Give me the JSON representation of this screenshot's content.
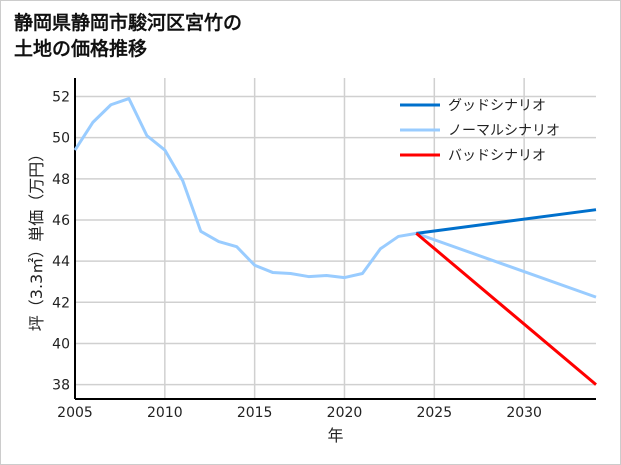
{
  "chart_data": {
    "type": "line",
    "title_lines": [
      "静岡県静岡市駿河区宮竹の",
      "土地の価格推移"
    ],
    "xlabel": "年",
    "ylabel": "坪（3.3㎡）単価（万円）",
    "xlim": [
      2005,
      2034
    ],
    "ylim": [
      37.3,
      52.9
    ],
    "xticks": [
      2005,
      2010,
      2015,
      2020,
      2025,
      2030
    ],
    "yticks": [
      38,
      40,
      42,
      44,
      46,
      48,
      50,
      52
    ],
    "grid": true,
    "legend_position": "top-right",
    "series": [
      {
        "name": "グッドシナリオ",
        "color": "#0070cc",
        "x": [
          2024,
          2034
        ],
        "y": [
          45.35,
          46.5
        ]
      },
      {
        "name": "ノーマルシナリオ",
        "color": "#99ccff",
        "x": [
          2005,
          2006,
          2007,
          2008,
          2009,
          2010,
          2011,
          2012,
          2013,
          2014,
          2015,
          2016,
          2017,
          2018,
          2019,
          2020,
          2021,
          2022,
          2023,
          2024,
          2034
        ],
        "y": [
          49.4,
          50.75,
          51.6,
          51.9,
          50.1,
          49.4,
          47.9,
          45.45,
          44.95,
          44.7,
          43.8,
          43.45,
          43.4,
          43.25,
          43.3,
          43.2,
          43.4,
          44.6,
          45.2,
          45.35,
          42.25
        ]
      },
      {
        "name": "バッドシナリオ",
        "color": "#ff0000",
        "x": [
          2024,
          2034
        ],
        "y": [
          45.35,
          38.0
        ]
      }
    ]
  }
}
